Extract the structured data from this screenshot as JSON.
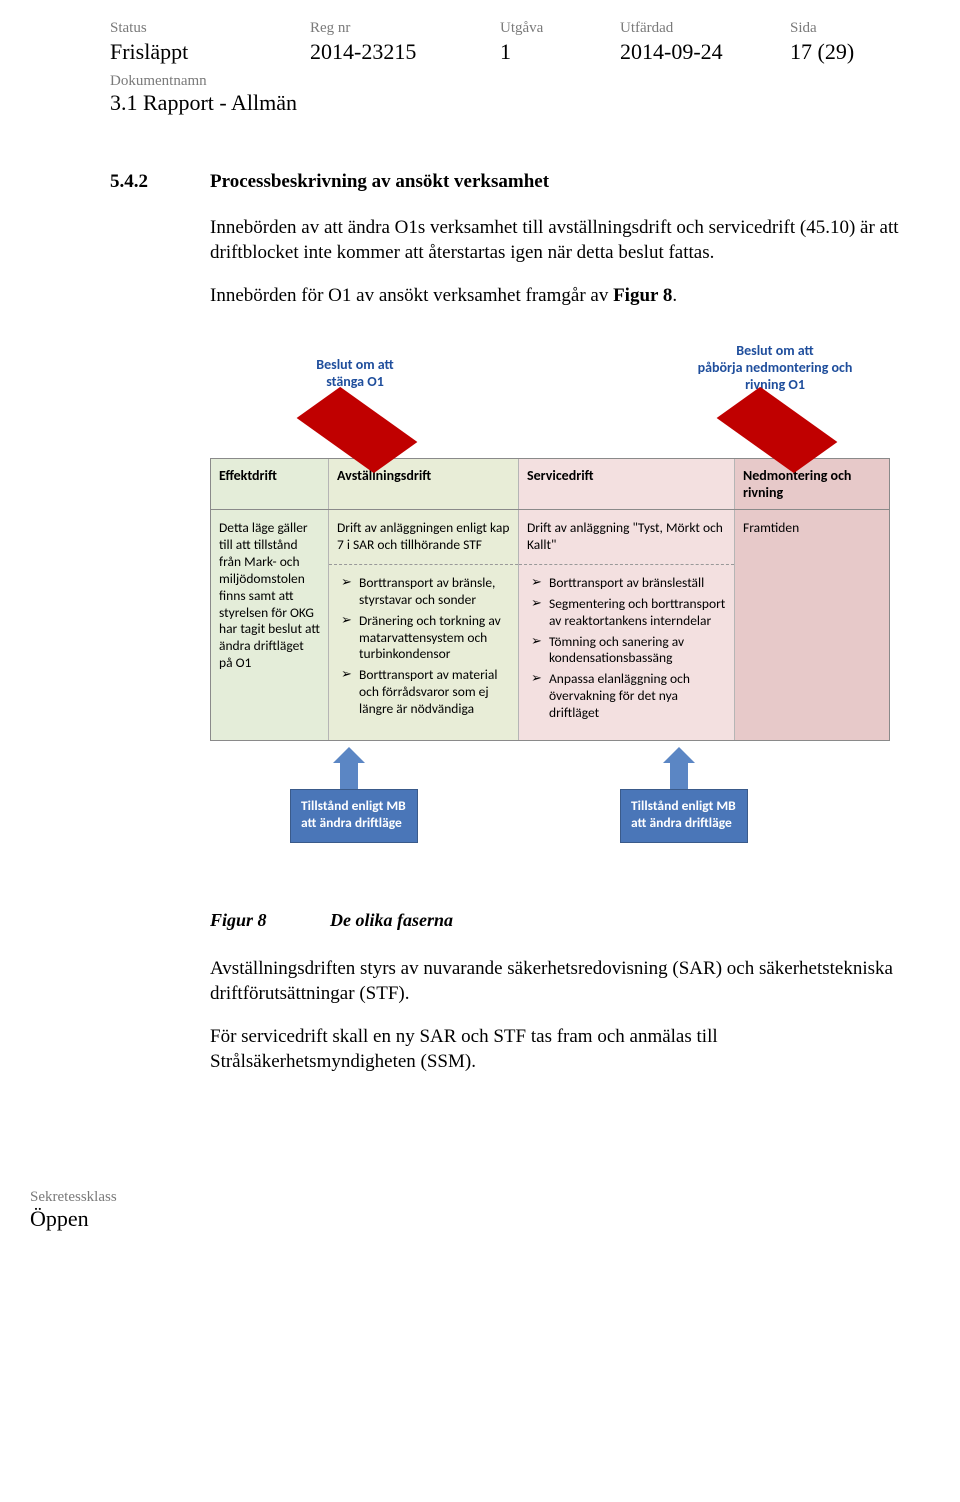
{
  "meta": {
    "labels": {
      "status": "Status",
      "regnr": "Reg nr",
      "utgava": "Utgåva",
      "utfardad": "Utfärdad",
      "sida": "Sida",
      "doknamn": "Dokumentnamn",
      "sekretess": "Sekretessklass"
    },
    "status": "Frisläppt",
    "regnr": "2014-23215",
    "utgava": "1",
    "utfardad": "2014-09-24",
    "sida": "17 (29)",
    "doknamn": "3.1 Rapport - Allmän",
    "sekretess": "Öppen"
  },
  "section": {
    "num": "5.4.2",
    "title": "Processbeskrivning av ansökt verksamhet",
    "p1": "Innebörden av att ändra O1s verksamhet till avställningsdrift och servicedrift (45.10) är att driftblocket inte kommer att återstartas igen när detta beslut fattas.",
    "p2_a": "Innebörden för O1 av ansökt verksamhet framgår av ",
    "p2_b": "Figur 8",
    "p2_c": "."
  },
  "diagram": {
    "top_labels": {
      "left": "Beslut om att\nstänga O1",
      "right": "Beslut om att\npåbörja nedmontering och\nrivning O1"
    },
    "diamond_color": "#c00000",
    "phases": [
      {
        "header": "Effektdrift",
        "bg": "#e4edd9",
        "intro": "Detta läge gäller till att tillstånd från Mark- och miljödomstolen finns samt att styrelsen för OKG har tagit beslut att ändra driftläget på O1",
        "bullets": []
      },
      {
        "header": "Avställningsdrift",
        "bg": "#e8edd7",
        "intro": "Drift av anläggningen enligt kap 7 i SAR och tillhörande STF",
        "bullets": [
          "Borttransport av bränsle, styrstavar och sonder",
          "Dränering och torkning av matarvattensystem och turbinkondensor",
          "Borttransport av material och förrådsvaror som ej längre är nödvändiga"
        ]
      },
      {
        "header": "Servicedrift",
        "bg": "#f3e0e0",
        "intro": "Drift av anläggning \"Tyst, Mörkt och Kallt\"",
        "bullets": [
          "Borttransport av bränsleställ",
          "Segmentering och borttransport av reaktortankens interndelar",
          "Tömning och sanering av kondensationsbassäng",
          "Anpassa elanläggning och övervakning för det nya driftläget"
        ]
      },
      {
        "header": "Nedmontering och rivning",
        "bg": "#e7c9c9",
        "intro": "Framtiden",
        "bullets": []
      }
    ],
    "tillstand": {
      "left": "Tillstånd enligt MB att ändra driftläge",
      "right": "Tillstånd enligt MB att ändra driftläge",
      "box_bg": "#4a76b8",
      "arrow_color": "#5b86c4"
    }
  },
  "figure": {
    "num": "Figur 8",
    "caption": "De olika faserna"
  },
  "after": {
    "p3": "Avställningsdriften styrs av nuvarande säkerhetsredovisning (SAR) och säkerhetstekniska driftförutsättningar (STF).",
    "p4": "För servicedrift skall en ny SAR och STF tas fram och anmälas till Strålsäkerhetsmyndigheten (SSM)."
  }
}
